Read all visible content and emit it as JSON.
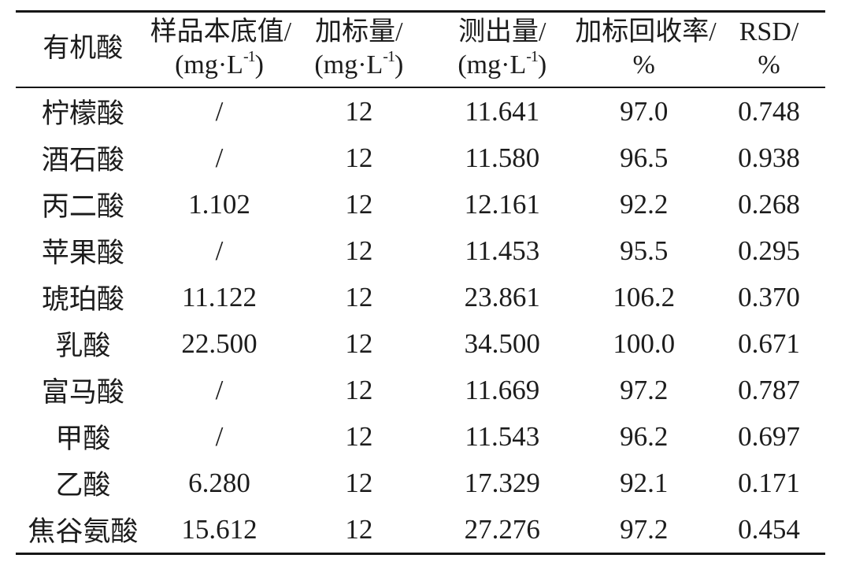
{
  "page": {
    "background_color": "#ffffff",
    "text_color": "#1c1c1c",
    "rule_color": "#161616"
  },
  "table": {
    "columns": [
      {
        "label": "有机酸"
      },
      {
        "label": "样品本底值/",
        "unit_pre": "(mg·L",
        "unit_sup": "-1",
        "unit_post": ")"
      },
      {
        "label": "加标量/",
        "unit_pre": "(mg·L",
        "unit_sup": "-1",
        "unit_post": ")"
      },
      {
        "label": "测出量/",
        "unit_pre": "(mg·L",
        "unit_sup": "-1",
        "unit_post": ")"
      },
      {
        "label": "加标回收率/",
        "unit": "%"
      },
      {
        "label": "RSD/",
        "unit": "%"
      }
    ],
    "rows": [
      [
        "柠檬酸",
        "/",
        "12",
        "11.641",
        "97.0",
        "0.748"
      ],
      [
        "酒石酸",
        "/",
        "12",
        "11.580",
        "96.5",
        "0.938"
      ],
      [
        "丙二酸",
        "1.102",
        "12",
        "12.161",
        "92.2",
        "0.268"
      ],
      [
        "苹果酸",
        "/",
        "12",
        "11.453",
        "95.5",
        "0.295"
      ],
      [
        "琥珀酸",
        "11.122",
        "12",
        "23.861",
        "106.2",
        "0.370"
      ],
      [
        "乳酸",
        "22.500",
        "12",
        "34.500",
        "100.0",
        "0.671"
      ],
      [
        "富马酸",
        "/",
        "12",
        "11.669",
        "97.2",
        "0.787"
      ],
      [
        "甲酸",
        "/",
        "12",
        "11.543",
        "96.2",
        "0.697"
      ],
      [
        "乙酸",
        "6.280",
        "12",
        "17.329",
        "92.1",
        "0.171"
      ],
      [
        "焦谷氨酸",
        "15.612",
        "12",
        "27.276",
        "97.2",
        "0.454"
      ]
    ]
  }
}
